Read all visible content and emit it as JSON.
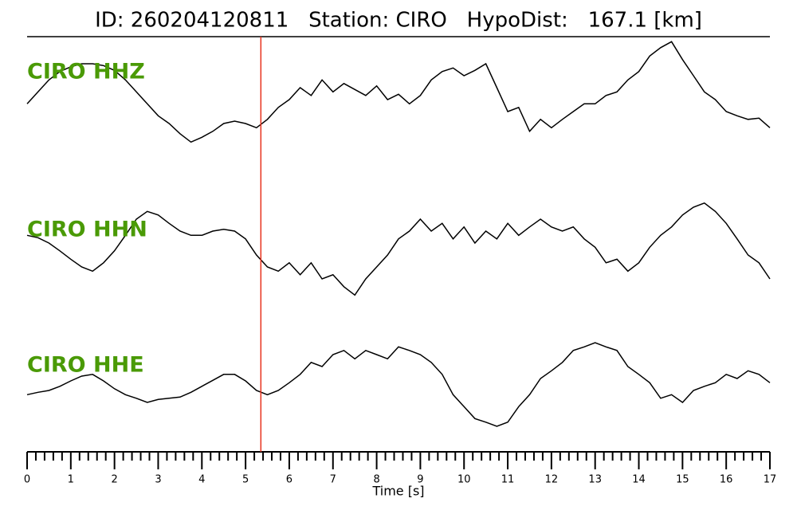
{
  "chart_data": {
    "type": "line",
    "title": "ID: 260204120811   Station: CIRO   HypoDist:   167.1 [km]",
    "xlabel": "Time [s]",
    "xlim": [
      0,
      17
    ],
    "xticks": [
      0,
      1,
      2,
      3,
      4,
      5,
      6,
      7,
      8,
      9,
      10,
      11,
      12,
      13,
      14,
      15,
      16,
      17
    ],
    "ylim": [
      -1,
      1
    ],
    "label_color": "#4a9a06",
    "marker_line": {
      "x": 5.35,
      "color": "#e8321e"
    },
    "x": [
      0,
      0.25,
      0.5,
      0.75,
      1,
      1.25,
      1.5,
      1.75,
      2,
      2.25,
      2.5,
      2.75,
      3,
      3.25,
      3.5,
      3.75,
      4,
      4.25,
      4.5,
      4.75,
      5,
      5.25,
      5.5,
      5.75,
      6,
      6.25,
      6.5,
      6.75,
      7,
      7.25,
      7.5,
      7.75,
      8,
      8.25,
      8.5,
      8.75,
      9,
      9.25,
      9.5,
      9.75,
      10,
      10.25,
      10.5,
      10.75,
      11,
      11.25,
      11.5,
      11.75,
      12,
      12.25,
      12.5,
      12.75,
      13,
      13.25,
      13.5,
      13.75,
      14,
      14.25,
      14.5,
      14.75,
      15,
      15.25,
      15.5,
      15.75,
      16,
      16.25,
      16.5,
      16.75,
      17
    ],
    "series": [
      {
        "name": "CIRO HHZ",
        "color": "#000000",
        "values": [
          -0.15,
          0.05,
          0.25,
          0.39,
          0.47,
          0.52,
          0.52,
          0.49,
          0.41,
          0.25,
          0.05,
          -0.15,
          -0.35,
          -0.48,
          -0.65,
          -0.79,
          -0.71,
          -0.61,
          -0.48,
          -0.44,
          -0.48,
          -0.55,
          -0.41,
          -0.21,
          -0.08,
          0.12,
          -0.01,
          0.25,
          0.05,
          0.19,
          0.09,
          -0.01,
          0.15,
          -0.08,
          0.01,
          -0.15,
          -0.01,
          0.25,
          0.39,
          0.45,
          0.32,
          0.41,
          0.52,
          0.12,
          -0.28,
          -0.21,
          -0.61,
          -0.41,
          -0.55,
          -0.41,
          -0.28,
          -0.15,
          -0.15,
          -0.01,
          0.05,
          0.25,
          0.39,
          0.65,
          0.79,
          0.89,
          0.59,
          0.32,
          0.05,
          -0.08,
          -0.28,
          -0.35,
          -0.41,
          -0.39,
          -0.55
        ]
      },
      {
        "name": "CIRO HHN",
        "color": "#000000",
        "values": [
          0.29,
          0.25,
          0.16,
          0.03,
          -0.11,
          -0.24,
          -0.31,
          -0.17,
          0.03,
          0.29,
          0.56,
          0.69,
          0.63,
          0.49,
          0.36,
          0.29,
          0.29,
          0.36,
          0.39,
          0.36,
          0.23,
          -0.04,
          -0.24,
          -0.31,
          -0.17,
          -0.37,
          -0.17,
          -0.44,
          -0.37,
          -0.57,
          -0.71,
          -0.44,
          -0.24,
          -0.04,
          0.23,
          0.36,
          0.56,
          0.36,
          0.49,
          0.23,
          0.43,
          0.16,
          0.36,
          0.23,
          0.49,
          0.29,
          0.43,
          0.56,
          0.43,
          0.36,
          0.43,
          0.23,
          0.09,
          -0.17,
          -0.11,
          -0.31,
          -0.17,
          0.09,
          0.29,
          0.43,
          0.63,
          0.76,
          0.83,
          0.69,
          0.49,
          0.23,
          -0.04,
          -0.17,
          -0.44
        ]
      },
      {
        "name": "CIRO HHE",
        "color": "#000000",
        "values": [
          -0.11,
          -0.07,
          -0.04,
          0.03,
          0.12,
          0.2,
          0.23,
          0.12,
          -0.01,
          -0.11,
          -0.17,
          -0.24,
          -0.19,
          -0.17,
          -0.15,
          -0.07,
          0.03,
          0.13,
          0.23,
          0.23,
          0.12,
          -0.04,
          -0.11,
          -0.04,
          0.09,
          0.23,
          0.43,
          0.36,
          0.56,
          0.63,
          0.49,
          0.63,
          0.56,
          0.49,
          0.69,
          0.63,
          0.56,
          0.43,
          0.23,
          -0.11,
          -0.31,
          -0.51,
          -0.57,
          -0.64,
          -0.57,
          -0.31,
          -0.11,
          0.16,
          0.29,
          0.43,
          0.63,
          0.69,
          0.76,
          0.69,
          0.63,
          0.36,
          0.23,
          0.09,
          -0.17,
          -0.11,
          -0.24,
          -0.04,
          0.03,
          0.09,
          0.23,
          0.16,
          0.29,
          0.23,
          0.09
        ]
      }
    ]
  }
}
